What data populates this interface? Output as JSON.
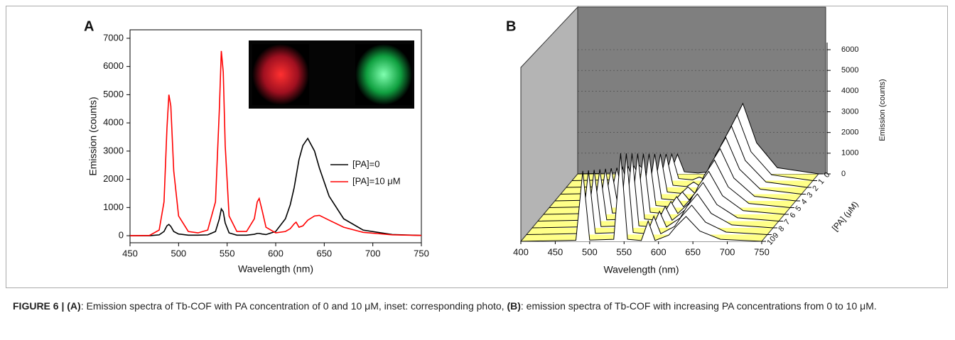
{
  "chart_data": [
    {
      "type": "line",
      "panel_label": "A",
      "xlabel": "Wavelength (nm)",
      "ylabel": "Emission (counts)",
      "x": [
        450,
        470,
        480,
        485,
        488,
        490,
        492,
        495,
        500,
        510,
        520,
        530,
        538,
        542,
        544,
        546,
        548,
        552,
        560,
        570,
        578,
        581,
        583,
        586,
        590,
        600,
        610,
        615,
        619,
        621,
        624,
        628,
        633,
        640,
        645,
        655,
        670,
        690,
        720,
        750
      ],
      "series": [
        {
          "name": "[PA]=0",
          "color": "#000000",
          "values": [
            0,
            0,
            30,
            150,
            350,
            400,
            330,
            150,
            60,
            20,
            20,
            30,
            150,
            600,
            950,
            850,
            450,
            100,
            20,
            20,
            50,
            80,
            80,
            60,
            40,
            150,
            600,
            1100,
            1700,
            2100,
            2700,
            3200,
            3450,
            3000,
            2400,
            1400,
            600,
            200,
            40,
            10
          ]
        },
        {
          "name": "[PA]=10 μM",
          "color": "#ff0000",
          "values": [
            0,
            10,
            200,
            1200,
            3800,
            5000,
            4600,
            2300,
            700,
            150,
            100,
            200,
            1200,
            4500,
            6550,
            5800,
            3200,
            700,
            150,
            150,
            600,
            1200,
            1320,
            900,
            300,
            100,
            150,
            250,
            420,
            480,
            300,
            350,
            550,
            700,
            720,
            550,
            300,
            120,
            30,
            10
          ]
        }
      ],
      "xlim": [
        450,
        750
      ],
      "xticks": [
        450,
        500,
        550,
        600,
        650,
        700,
        750
      ],
      "ylim": [
        -250,
        7300
      ],
      "yticks": [
        0,
        1000,
        2000,
        3000,
        4000,
        5000,
        6000,
        7000
      ]
    },
    {
      "type": "waterfall",
      "panel_label": "B",
      "xlabel": "Wavelength (nm)",
      "ylabel": "Emission (counts)",
      "zlabel": "[PA] (μM)",
      "x": [
        400,
        480,
        490,
        500,
        535,
        545,
        555,
        575,
        585,
        595,
        615,
        625,
        640,
        660,
        690,
        750
      ],
      "series": [
        {
          "values": [
            0,
            50,
            400,
            60,
            100,
            950,
            100,
            40,
            80,
            40,
            1200,
            2400,
            3400,
            1500,
            300,
            0
          ]
        },
        {
          "values": [
            0,
            50,
            700,
            60,
            100,
            1280,
            100,
            40,
            170,
            40,
            1110,
            2230,
            3180,
            1400,
            280,
            0
          ]
        },
        {
          "values": [
            0,
            50,
            1000,
            60,
            100,
            1610,
            100,
            40,
            260,
            40,
            1020,
            2060,
            2960,
            1300,
            260,
            0
          ]
        },
        {
          "values": [
            0,
            50,
            1300,
            60,
            100,
            1940,
            100,
            40,
            350,
            40,
            930,
            1890,
            2740,
            1200,
            240,
            0
          ]
        },
        {
          "values": [
            0,
            50,
            1600,
            60,
            100,
            2270,
            100,
            40,
            440,
            40,
            840,
            1720,
            2520,
            1100,
            220,
            0
          ]
        },
        {
          "values": [
            0,
            50,
            1900,
            60,
            100,
            2600,
            100,
            40,
            530,
            40,
            750,
            1550,
            2300,
            1000,
            200,
            0
          ]
        },
        {
          "values": [
            0,
            50,
            2200,
            60,
            100,
            2930,
            100,
            40,
            620,
            40,
            660,
            1380,
            2080,
            900,
            180,
            0
          ]
        },
        {
          "values": [
            0,
            50,
            2500,
            60,
            100,
            3260,
            100,
            40,
            710,
            40,
            570,
            1210,
            1860,
            800,
            160,
            0
          ]
        },
        {
          "values": [
            0,
            50,
            2800,
            60,
            100,
            3590,
            100,
            40,
            800,
            40,
            480,
            1040,
            1640,
            700,
            140,
            0
          ]
        },
        {
          "values": [
            0,
            50,
            3100,
            60,
            100,
            3920,
            100,
            40,
            890,
            40,
            390,
            870,
            1420,
            600,
            120,
            0
          ]
        },
        {
          "values": [
            0,
            50,
            3400,
            60,
            100,
            4250,
            100,
            40,
            980,
            40,
            300,
            700,
            1200,
            500,
            100,
            0
          ]
        }
      ],
      "color": "#ffffff",
      "floor_color": "#ffff88",
      "xlim": [
        400,
        750
      ],
      "xticks": [
        400,
        450,
        500,
        550,
        600,
        650,
        700,
        750
      ],
      "ylim": [
        0,
        6000
      ],
      "yticks": [
        0,
        1000,
        2000,
        3000,
        4000,
        5000,
        6000
      ],
      "zlim": [
        0,
        10
      ],
      "zticks": [
        0,
        1,
        2,
        3,
        4,
        5,
        6,
        7,
        8,
        9,
        10
      ]
    }
  ],
  "caption": {
    "parts": [
      "FIGURE 6 | (A)",
      ": Emission spectra of Tb-COF with PA concentration of 0 and 10 μM, inset: corresponding photo, ",
      "(B)",
      ": emission spectra of Tb-COF with increasing PA concentrations from 0 to 10 μM."
    ]
  }
}
